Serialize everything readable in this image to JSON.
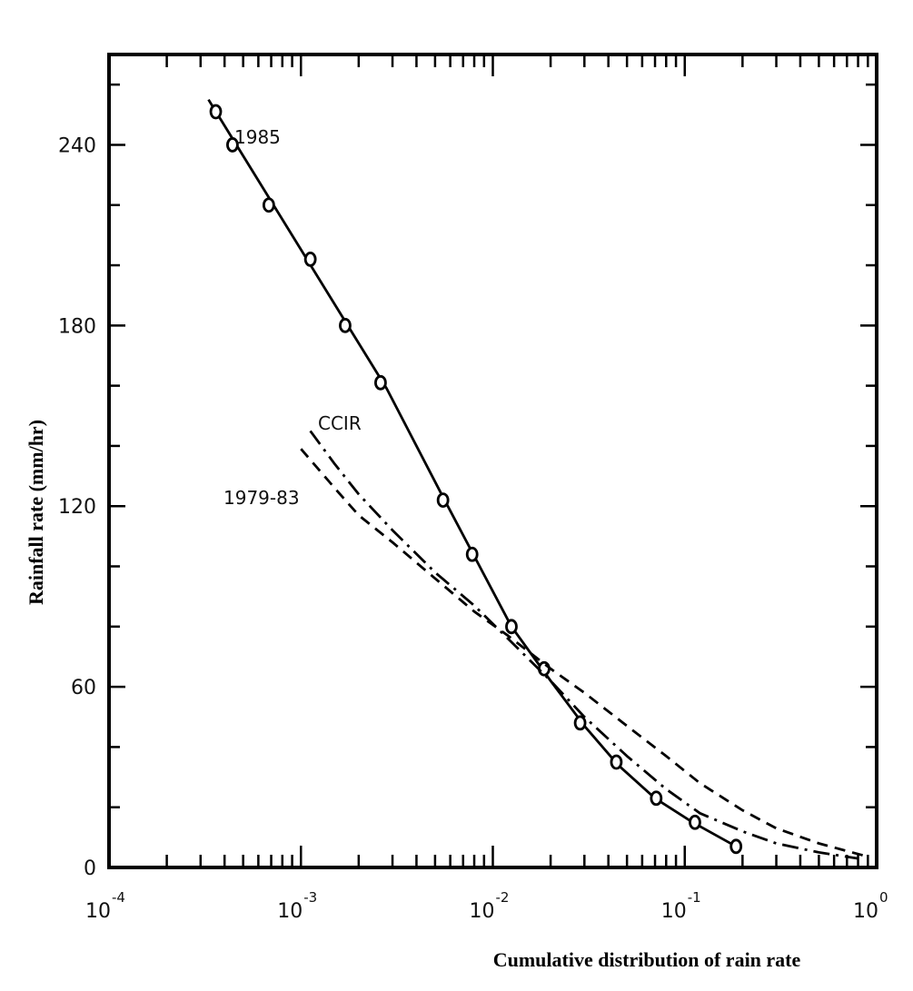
{
  "chart_data": {
    "type": "line",
    "title": "",
    "xlabel": "Cumulative distribution of rain rate",
    "ylabel": "Rainfall rate (mm/hr)",
    "x_scale": "log",
    "xlim": [
      0.0001,
      1
    ],
    "ylim": [
      0,
      270
    ],
    "x_ticks": [
      {
        "value": 0.0001,
        "base": "10",
        "exp": "-4"
      },
      {
        "value": 0.001,
        "base": "10",
        "exp": "-3"
      },
      {
        "value": 0.01,
        "base": "10",
        "exp": "-2"
      },
      {
        "value": 0.1,
        "base": "10",
        "exp": "-1"
      },
      {
        "value": 1,
        "base": "10",
        "exp": "0"
      }
    ],
    "y_ticks": [
      {
        "value": 0,
        "label": "0"
      },
      {
        "value": 60,
        "label": "60"
      },
      {
        "value": 120,
        "label": "120"
      },
      {
        "value": 180,
        "label": "180"
      },
      {
        "value": 240,
        "label": "240"
      }
    ],
    "grid": false,
    "series": [
      {
        "name": "1985",
        "style": "solid",
        "markers": "circle",
        "points": [
          [
            0.00036,
            251
          ],
          [
            0.00044,
            240
          ],
          [
            0.00068,
            220
          ],
          [
            0.00112,
            202
          ],
          [
            0.0017,
            180
          ],
          [
            0.0026,
            161
          ],
          [
            0.0055,
            122
          ],
          [
            0.0078,
            104
          ],
          [
            0.0125,
            80
          ],
          [
            0.0185,
            66
          ],
          [
            0.0285,
            48
          ],
          [
            0.044,
            35
          ],
          [
            0.071,
            23
          ],
          [
            0.113,
            15
          ],
          [
            0.185,
            7
          ]
        ],
        "line": [
          [
            0.00033,
            255
          ],
          [
            0.0028,
            159
          ],
          [
            0.0055,
            123
          ],
          [
            0.0125,
            80
          ],
          [
            0.02,
            62
          ],
          [
            0.03,
            47
          ],
          [
            0.045,
            34
          ],
          [
            0.07,
            23
          ],
          [
            0.11,
            15
          ],
          [
            0.185,
            7
          ]
        ]
      },
      {
        "name": "CCIR",
        "style": "dashdot",
        "line": [
          [
            0.00112,
            145
          ],
          [
            0.0015,
            134
          ],
          [
            0.002,
            124
          ],
          [
            0.003,
            112
          ],
          [
            0.005,
            98
          ],
          [
            0.008,
            87
          ],
          [
            0.012,
            76
          ],
          [
            0.02,
            62
          ],
          [
            0.03,
            50
          ],
          [
            0.05,
            37
          ],
          [
            0.08,
            26
          ],
          [
            0.12,
            18
          ],
          [
            0.2,
            12
          ],
          [
            0.3,
            8
          ],
          [
            0.5,
            5
          ],
          [
            0.8,
            3
          ]
        ]
      },
      {
        "name": "1979-83",
        "style": "dashed",
        "line": [
          [
            0.001,
            139
          ],
          [
            0.0015,
            126
          ],
          [
            0.002,
            117
          ],
          [
            0.003,
            108
          ],
          [
            0.005,
            96
          ],
          [
            0.008,
            85
          ],
          [
            0.012,
            77
          ],
          [
            0.02,
            66
          ],
          [
            0.03,
            58
          ],
          [
            0.05,
            47
          ],
          [
            0.08,
            37
          ],
          [
            0.12,
            28
          ],
          [
            0.2,
            19
          ],
          [
            0.3,
            13
          ],
          [
            0.5,
            8
          ],
          [
            0.85,
            4
          ]
        ]
      }
    ]
  }
}
